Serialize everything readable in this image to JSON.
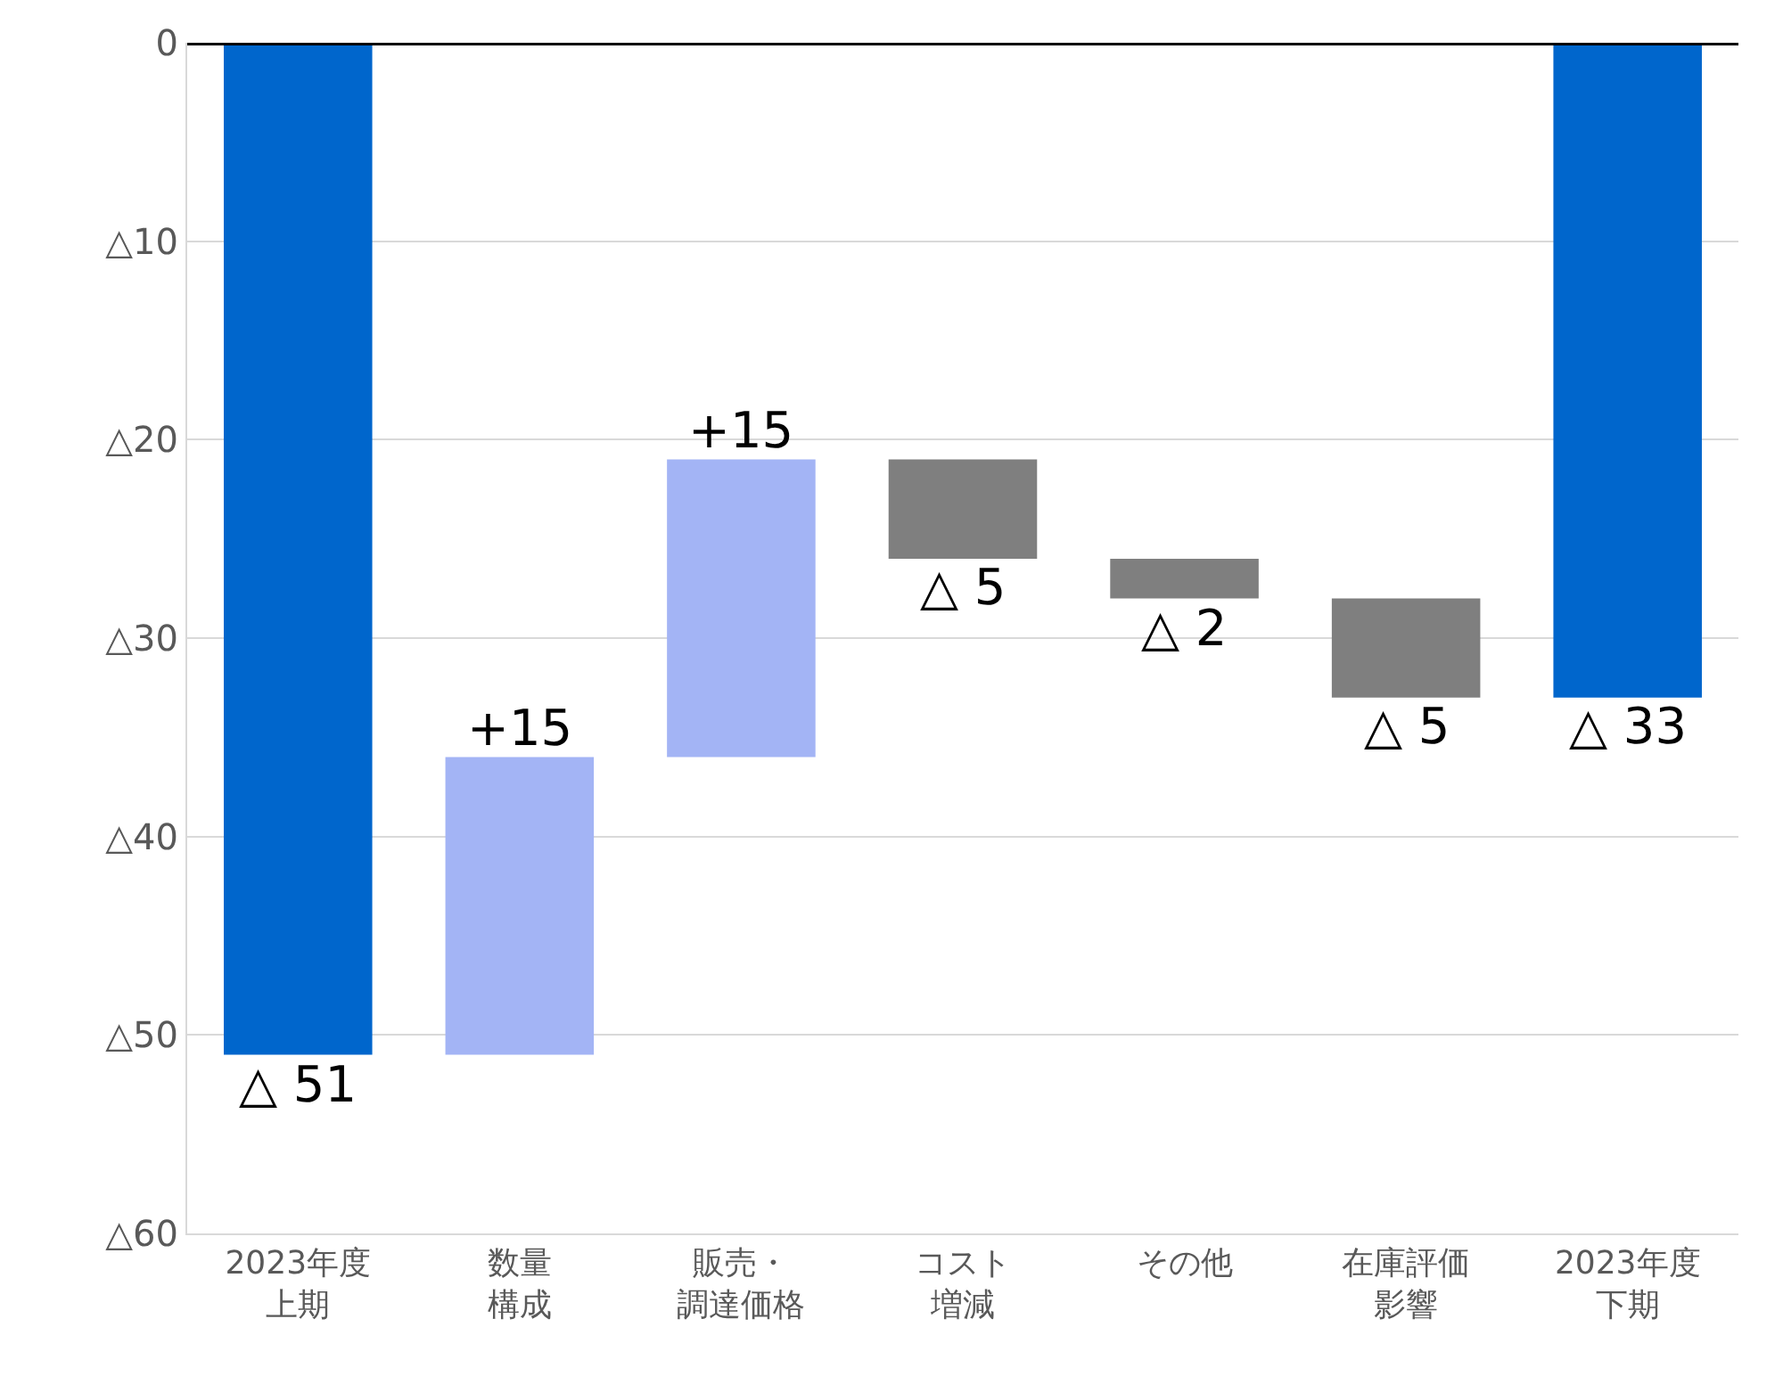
{
  "chart_data": {
    "type": "bar",
    "categories": [
      "2023年度上期",
      "数量構成",
      "販売・調達価格",
      "コスト増減",
      "その他",
      "在庫評価影響",
      "2023年度下期"
    ],
    "values": [
      -51,
      15,
      15,
      -5,
      -2,
      -5,
      -33
    ],
    "base": [
      0,
      -51,
      -36,
      -21,
      -26,
      -28,
      0
    ],
    "colors": [
      "#0066cc",
      "#a3b4f5",
      "#a3b4f5",
      "#7f7f7f",
      "#7f7f7f",
      "#7f7f7f",
      "#0066cc"
    ],
    "value_labels": [
      "△ 51",
      "+15",
      "+15",
      "△ 5",
      "△ 2",
      "△ 5",
      "△ 33"
    ],
    "ylim": [
      -60,
      0
    ],
    "yticks": [
      {
        "value": -60,
        "label": "△60"
      },
      {
        "value": -50,
        "label": "△50"
      },
      {
        "value": -40,
        "label": "△40"
      },
      {
        "value": -30,
        "label": "△30"
      },
      {
        "value": -20,
        "label": "△20"
      },
      {
        "value": -10,
        "label": "△10"
      },
      0
    ],
    "ref_lines": [
      {
        "axis": "y",
        "value": 0,
        "color": "#000000"
      }
    ],
    "grid": "y"
  }
}
